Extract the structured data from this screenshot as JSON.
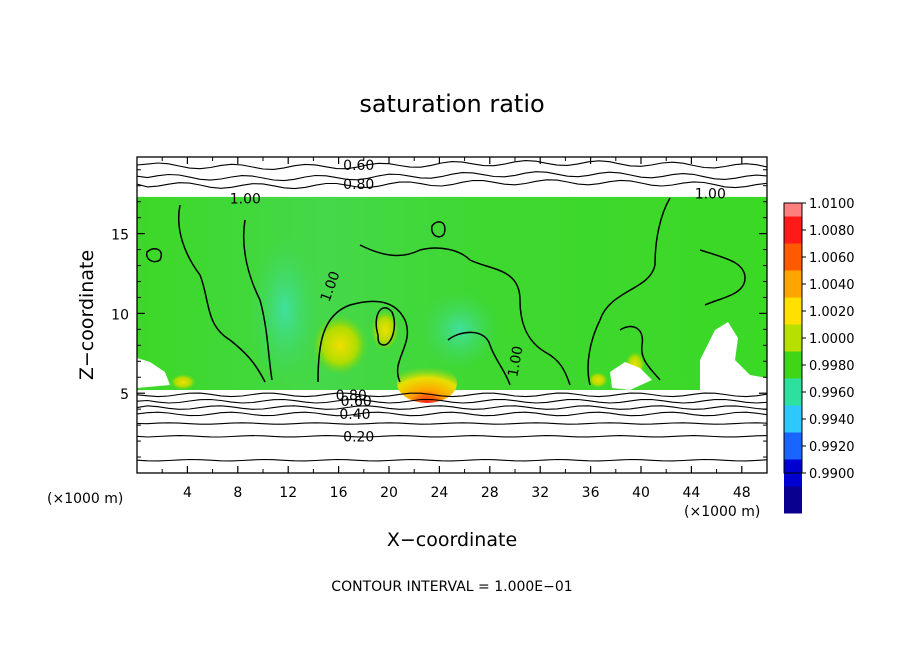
{
  "chart_data": {
    "type": "heatmap",
    "title": "saturation ratio",
    "xlabel": "X−coordinate",
    "ylabel": "Z−coordinate",
    "x_unit": "(×1000 m)",
    "z_unit": "(×1000 m)",
    "xlim": [
      0,
      50
    ],
    "ylim": [
      0,
      19.8
    ],
    "x_ticks": [
      4,
      8,
      12,
      16,
      20,
      24,
      28,
      32,
      36,
      40,
      44,
      48
    ],
    "y_ticks": [
      5,
      10,
      15
    ],
    "contour_note": "CONTOUR INTERVAL = 1.000E−01",
    "contour_labels": [
      {
        "text": "0.60",
        "x": 17.6,
        "z": 19.3
      },
      {
        "text": "0.80",
        "x": 17.6,
        "z": 18.1
      },
      {
        "text": "1.00",
        "x": 8.6,
        "z": 17.2
      },
      {
        "text": "1.00",
        "x": 45.5,
        "z": 17.5
      },
      {
        "text": "1.00",
        "x": 15.3,
        "z": 11.7
      },
      {
        "text": "1.00",
        "x": 30.0,
        "z": 7.0
      },
      {
        "text": "0.80",
        "x": 17.0,
        "z": 4.9
      },
      {
        "text": "0.60",
        "x": 17.4,
        "z": 4.5
      },
      {
        "text": "0.40",
        "x": 17.3,
        "z": 3.7
      },
      {
        "text": "0.20",
        "x": 17.6,
        "z": 2.3
      }
    ],
    "colorbar": {
      "min": 0.99,
      "max": 1.01,
      "labels": [
        "1.0100",
        "1.0080",
        "1.0060",
        "1.0040",
        "1.0020",
        "1.0000",
        "0.9980",
        "0.9960",
        "0.9940",
        "0.9920",
        "0.9900"
      ],
      "colors": [
        "#ff7f7f",
        "#ff1a1a",
        "#ff5a00",
        "#ffa500",
        "#ffe000",
        "#b7e000",
        "#3fd61a",
        "#2ee0a0",
        "#2ec8ff",
        "#1a64ff",
        "#0000d0",
        "#0a0090",
        "#7a00a0"
      ]
    },
    "cloud_layer": {
      "z_bottom": 5.2,
      "z_top": 17.3
    }
  }
}
